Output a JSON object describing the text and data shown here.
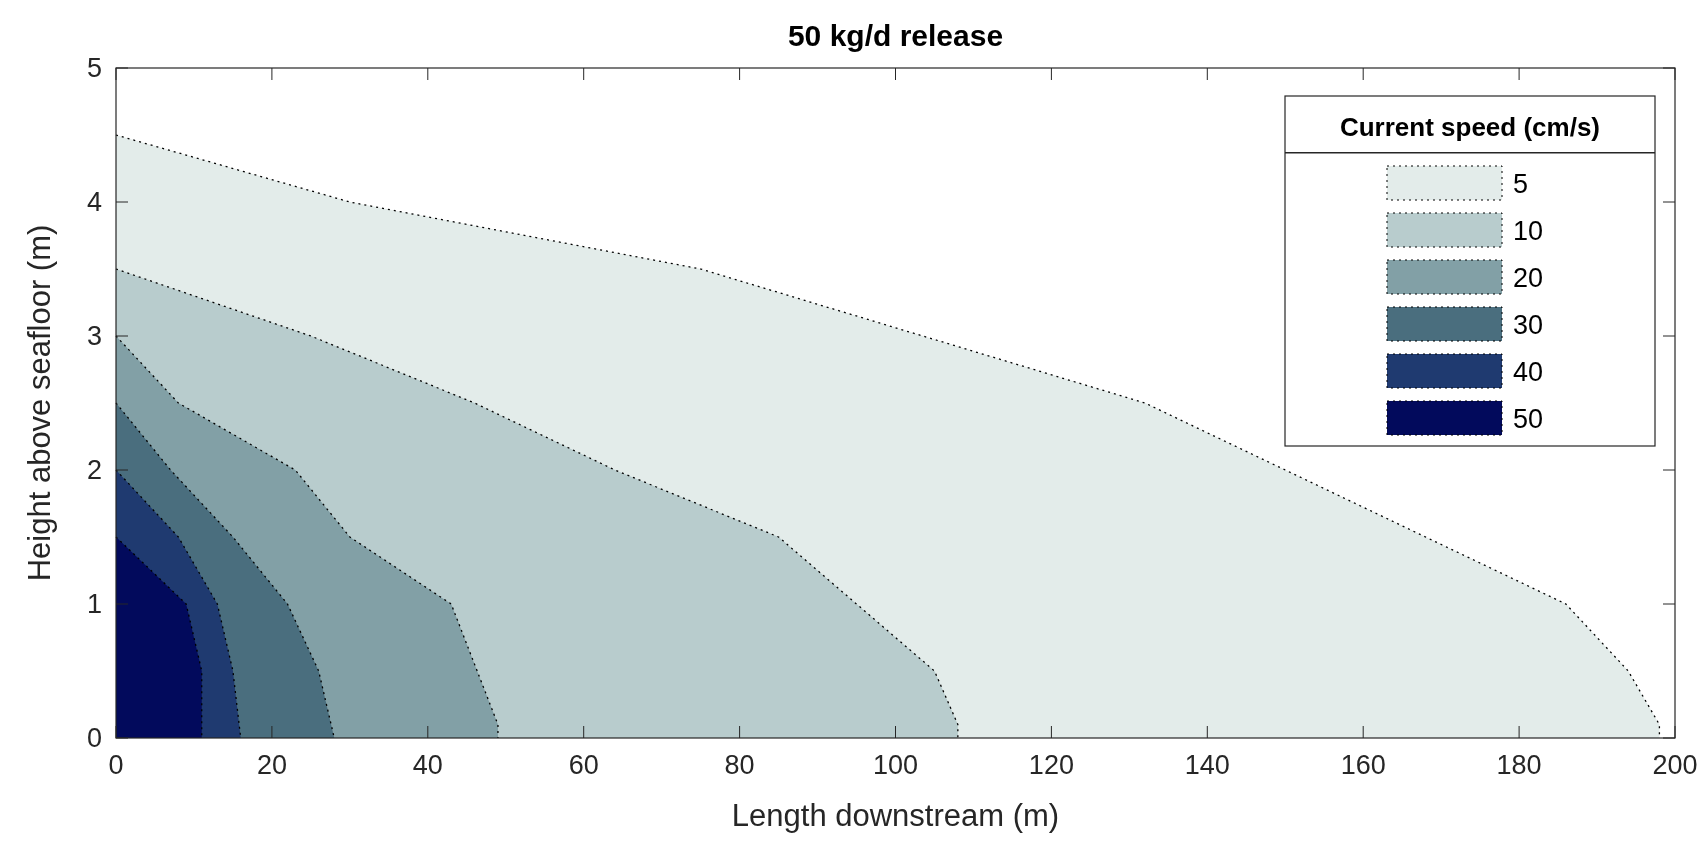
{
  "chart_data": {
    "type": "area",
    "title": "50 kg/d release",
    "xlabel": "Length downstream (m)",
    "ylabel": "Height above seafloor (m)",
    "legend_title": "Current speed (cm/s)",
    "legend": "top right",
    "grid": false,
    "line_style": "dotted",
    "xlim": [
      0,
      200
    ],
    "ylim": [
      0,
      5
    ],
    "xticks": [
      0,
      20,
      40,
      60,
      80,
      100,
      120,
      140,
      160,
      180,
      200
    ],
    "yticks": [
      0,
      1,
      2,
      3,
      4,
      5
    ],
    "series": [
      {
        "name": "5",
        "color": "#e3ecea",
        "x": [
          0,
          30,
          75,
          132,
          186,
          194,
          198,
          198
        ],
        "values": [
          4.5,
          4,
          3.5,
          2.5,
          1,
          0.5,
          0.1,
          0
        ]
      },
      {
        "name": "10",
        "color": "#b8cccd",
        "x": [
          0,
          25,
          46,
          64,
          85,
          105,
          108,
          108
        ],
        "values": [
          3.5,
          3,
          2.5,
          2,
          1.5,
          0.5,
          0.1,
          0
        ]
      },
      {
        "name": "20",
        "color": "#82a0a6",
        "x": [
          0,
          8,
          23,
          30,
          43,
          49,
          49
        ],
        "values": [
          3,
          2.5,
          2,
          1.5,
          1,
          0.1,
          0
        ]
      },
      {
        "name": "30",
        "color": "#4a6e7e",
        "x": [
          0,
          7,
          15,
          22,
          26,
          28
        ],
        "values": [
          2.5,
          2,
          1.5,
          1,
          0.5,
          0
        ]
      },
      {
        "name": "40",
        "color": "#1f3a70",
        "x": [
          0,
          8,
          13,
          15,
          16
        ],
        "values": [
          2,
          1.5,
          1,
          0.5,
          0
        ]
      },
      {
        "name": "50",
        "color": "#020a5c",
        "x": [
          0,
          9,
          11,
          11
        ],
        "values": [
          1.5,
          1,
          0.5,
          0
        ]
      }
    ]
  }
}
